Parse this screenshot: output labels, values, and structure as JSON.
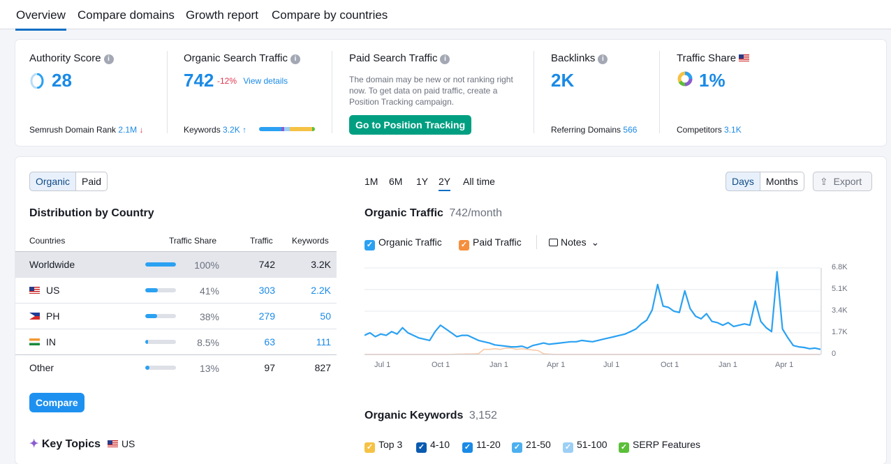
{
  "nav": {
    "tabs": [
      {
        "label": "Overview"
      },
      {
        "label": "Compare domains"
      },
      {
        "label": "Growth report"
      },
      {
        "label": "Compare by countries"
      }
    ]
  },
  "metrics": {
    "authority": {
      "title": "Authority Score",
      "value": "28",
      "foot_label": "Semrush Domain Rank",
      "foot_value": "2.1M",
      "foot_arrow": "↓"
    },
    "organic": {
      "title": "Organic Search Traffic",
      "value": "742",
      "change": "-12%",
      "link": "View details",
      "foot_label": "Keywords",
      "foot_value": "3.2K",
      "foot_arrow": "↑"
    },
    "paid": {
      "title": "Paid Search Traffic",
      "message": "The domain may be new or not ranking right now. To get data on paid traffic, create a Position Tracking campaign.",
      "button": "Go to Position Tracking"
    },
    "backlinks": {
      "title": "Backlinks",
      "value": "2K",
      "foot_label": "Referring Domains",
      "foot_value": "566"
    },
    "share": {
      "title": "Traffic Share",
      "value": "1%",
      "foot_label": "Competitors",
      "foot_value": "3.1K"
    }
  },
  "left": {
    "toggle": [
      "Organic",
      "Paid"
    ],
    "heading": "Distribution by Country",
    "columns": [
      "Countries",
      "Traffic Share",
      "Traffic",
      "Keywords"
    ],
    "rows": [
      {
        "country": "Worldwide",
        "flag": "",
        "share": 1.0,
        "share_label": "100%",
        "traffic": "742",
        "keywords": "3.2K"
      },
      {
        "country": "US",
        "flag": "us",
        "share": 0.41,
        "share_label": "41%",
        "traffic": "303",
        "keywords": "2.2K"
      },
      {
        "country": "PH",
        "flag": "ph",
        "share": 0.38,
        "share_label": "38%",
        "traffic": "279",
        "keywords": "50"
      },
      {
        "country": "IN",
        "flag": "in",
        "share": 0.085,
        "share_label": "8.5%",
        "traffic": "63",
        "keywords": "111"
      },
      {
        "country": "Other",
        "flag": "",
        "share": 0.13,
        "share_label": "13%",
        "traffic": "97",
        "keywords": "827"
      }
    ],
    "compare_button": "Compare",
    "key_topics": "Key Topics",
    "key_topics_country": "US"
  },
  "chart_panel": {
    "periods": [
      "1M",
      "6M",
      "1Y",
      "2Y",
      "All time"
    ],
    "active_period": "2Y",
    "granularity": [
      "Days",
      "Months"
    ],
    "export": "Export",
    "title": "Organic Traffic",
    "subtitle": "742/month",
    "legend": [
      {
        "label": "Organic Traffic",
        "color": "#2aa1f2"
      },
      {
        "label": "Paid Traffic",
        "color": "#f58f3c"
      }
    ],
    "notes": "Notes",
    "keywords_title": "Organic Keywords",
    "keywords_count": "3,152",
    "kw_legend": [
      {
        "label": "Top 3",
        "color": "#f5c245"
      },
      {
        "label": "4-10",
        "color": "#0a5ab0"
      },
      {
        "label": "11-20",
        "color": "#1a8ae6"
      },
      {
        "label": "21-50",
        "color": "#4cb0f0"
      },
      {
        "label": "51-100",
        "color": "#9ccff5"
      },
      {
        "label": "SERP Features",
        "color": "#5bbf3a"
      }
    ]
  },
  "chart_data": {
    "type": "line",
    "x_ticks": [
      "Jul 1",
      "Oct 1",
      "Jan 1",
      "Apr 1",
      "Jul 1",
      "Oct 1",
      "Jan 1",
      "Apr 1"
    ],
    "y_ticks": [
      "6.8K",
      "5.1K",
      "3.4K",
      "1.7K",
      "0"
    ],
    "ylim": [
      0,
      6800
    ],
    "series": [
      {
        "name": "Organic Traffic",
        "color": "#2aa1f2",
        "values": [
          1500,
          1700,
          1400,
          1600,
          1500,
          1800,
          1600,
          2100,
          1700,
          1500,
          1300,
          1200,
          1100,
          1800,
          2300,
          2000,
          1700,
          1400,
          1500,
          1500,
          1300,
          1100,
          1000,
          900,
          750,
          700,
          650,
          600,
          600,
          650,
          500,
          700,
          800,
          900,
          800,
          850,
          900,
          950,
          1000,
          1000,
          1100,
          1050,
          1000,
          1100,
          1200,
          1300,
          1400,
          1500,
          1600,
          1800,
          2000,
          2400,
          2700,
          3500,
          5500,
          3800,
          3700,
          3400,
          3300,
          5000,
          3600,
          3000,
          2800,
          3200,
          2600,
          2500,
          2300,
          2500,
          2200,
          2300,
          2400,
          2300,
          4200,
          2600,
          2100,
          1800,
          6500,
          2000,
          1300,
          700,
          600,
          550,
          450,
          500,
          400
        ]
      },
      {
        "name": "Paid Traffic",
        "color": "#f58f3c",
        "values": [
          0,
          0,
          0,
          0,
          0,
          0,
          0,
          0,
          0,
          0,
          0,
          0,
          0,
          0,
          0,
          0,
          0,
          20,
          30,
          40,
          40,
          60,
          400,
          400,
          450,
          400,
          500,
          500,
          400,
          450,
          400,
          350,
          300,
          50,
          20,
          0,
          0,
          0,
          0,
          0,
          0,
          0,
          0,
          0,
          0,
          0,
          0,
          0,
          0,
          0,
          0,
          0,
          0,
          0,
          0,
          0,
          0,
          0,
          0,
          0,
          0,
          0,
          0,
          0,
          0,
          0,
          0,
          0,
          0,
          0,
          0,
          0,
          0,
          0,
          0,
          0,
          0,
          0,
          0,
          0,
          0,
          0,
          0,
          0,
          0
        ]
      }
    ]
  }
}
